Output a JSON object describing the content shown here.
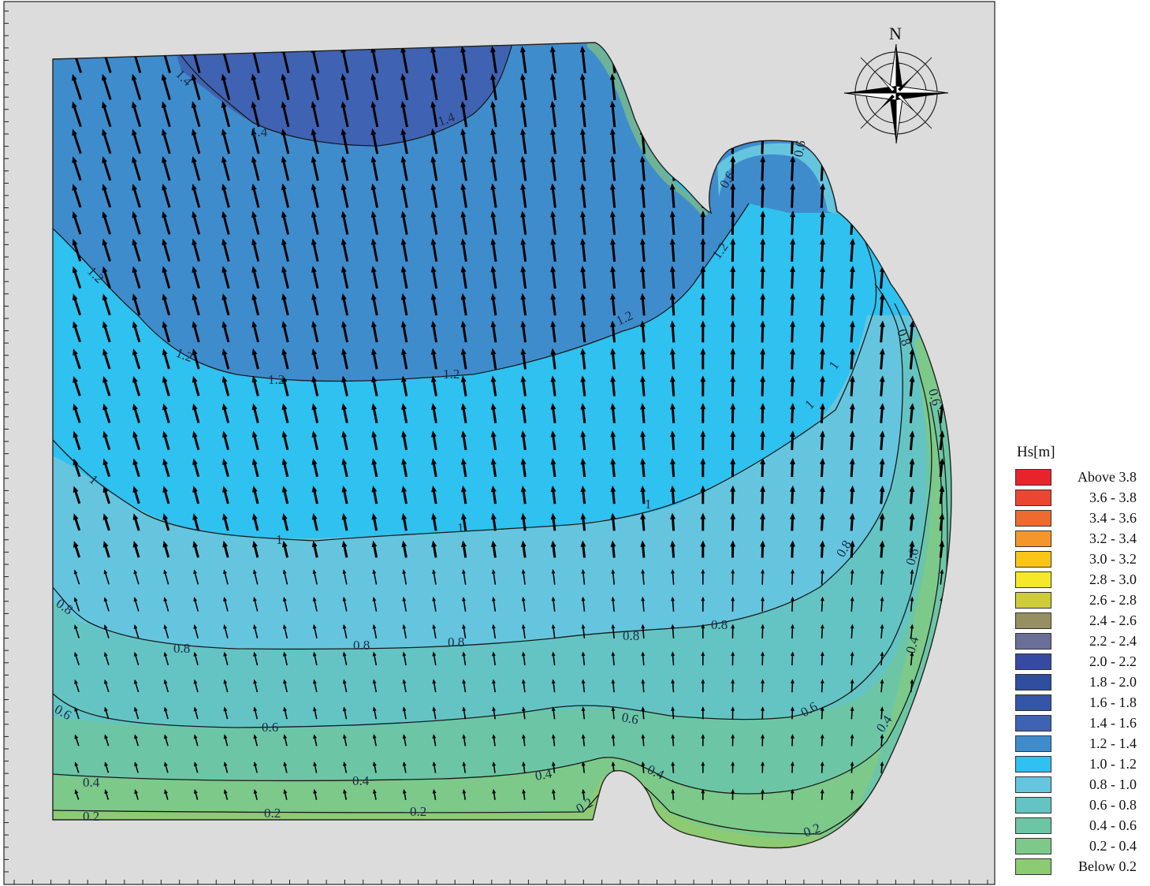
{
  "map": {
    "compass_label": "N",
    "contour_labels": [
      "1.4",
      "1.4",
      "1.4",
      "1.2",
      "1.2",
      "1.2",
      "1.2",
      "1.2",
      "1.2",
      "1",
      "1",
      "1",
      "1",
      "1",
      "1",
      "0.8",
      "0.8",
      "0.8",
      "0.8",
      "0.8",
      "0.8",
      "0.8",
      "0.8",
      "0.6",
      "0.6",
      "0.6",
      "0.6",
      "0.6",
      "0.6",
      "0.6",
      "0.4",
      "0.4",
      "0.4",
      "0.4",
      "0.4",
      "0.4",
      "0.2",
      "0.2",
      "0.2",
      "0.2",
      "0.2",
      "0.6"
    ],
    "colors": {
      "frame_background": "#dcdcdc",
      "band_1_4_1_6": "#3f63b2",
      "band_1_2_1_4": "#3f8ccd",
      "band_1_0_1_2": "#2fc1ef",
      "band_0_8_1_0": "#65c5de",
      "band_0_6_0_8": "#64c4c4",
      "band_0_4_0_6": "#6cc6a6",
      "band_0_2_0_4": "#7cc98a"
    }
  },
  "legend": {
    "title": "Hs[m]",
    "items": [
      {
        "label": "Above 3.8",
        "color": "#e8242b"
      },
      {
        "label": "3.6 - 3.8",
        "color": "#ec4632"
      },
      {
        "label": "3.4 - 3.6",
        "color": "#ef6a2e"
      },
      {
        "label": "3.2 - 3.4",
        "color": "#f5962a"
      },
      {
        "label": "3.0 - 3.2",
        "color": "#fbc515"
      },
      {
        "label": "2.8 - 3.0",
        "color": "#f5e828"
      },
      {
        "label": "2.6 - 2.8",
        "color": "#cfcc39"
      },
      {
        "label": "2.4 - 2.6",
        "color": "#958f62"
      },
      {
        "label": "2.2 - 2.4",
        "color": "#6a6f98"
      },
      {
        "label": "2.0 - 2.2",
        "color": "#374aa1"
      },
      {
        "label": "1.8 - 2.0",
        "color": "#2f4e9f"
      },
      {
        "label": "1.6 - 1.8",
        "color": "#3555a8"
      },
      {
        "label": "1.4 - 1.6",
        "color": "#3f63b2"
      },
      {
        "label": "1.2 - 1.4",
        "color": "#3f8ccd"
      },
      {
        "label": "1.0 - 1.2",
        "color": "#2fc1ef"
      },
      {
        "label": "0.8 - 1.0",
        "color": "#65c5de"
      },
      {
        "label": "0.6 - 0.8",
        "color": "#64c4c4"
      },
      {
        "label": "0.4 - 0.6",
        "color": "#6cc6a6"
      },
      {
        "label": "0.2 - 0.4",
        "color": "#7cc98a"
      },
      {
        "label": "Below 0.2",
        "color": "#8dcb73"
      }
    ]
  }
}
